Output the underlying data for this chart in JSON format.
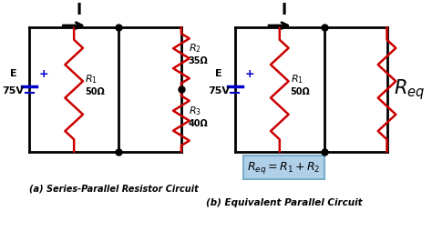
{
  "wire_color": "#000000",
  "resistor_color": "#cc0000",
  "battery_color": "#0000cc",
  "text_color": "#000000",
  "title_a": "(a) Series-Parallel Resistor Circuit",
  "title_b": "(b) Equivalent Parallel Circuit",
  "voltage": "75V",
  "E_label": "E",
  "I_label": "I",
  "R1_label": "R",
  "R1_sub": "1",
  "R1_val": "50Ω",
  "R2_label": "R",
  "R2_sub": "2",
  "R2_val": "35Ω",
  "R3_label": "R",
  "R3_sub": "3",
  "R3_val": "40Ω",
  "Req_label": "R",
  "Req_sub": "eq",
  "font_size_small": 7,
  "font_size_med": 8,
  "font_size_large": 10,
  "formula_bg": "#b0cfe8"
}
